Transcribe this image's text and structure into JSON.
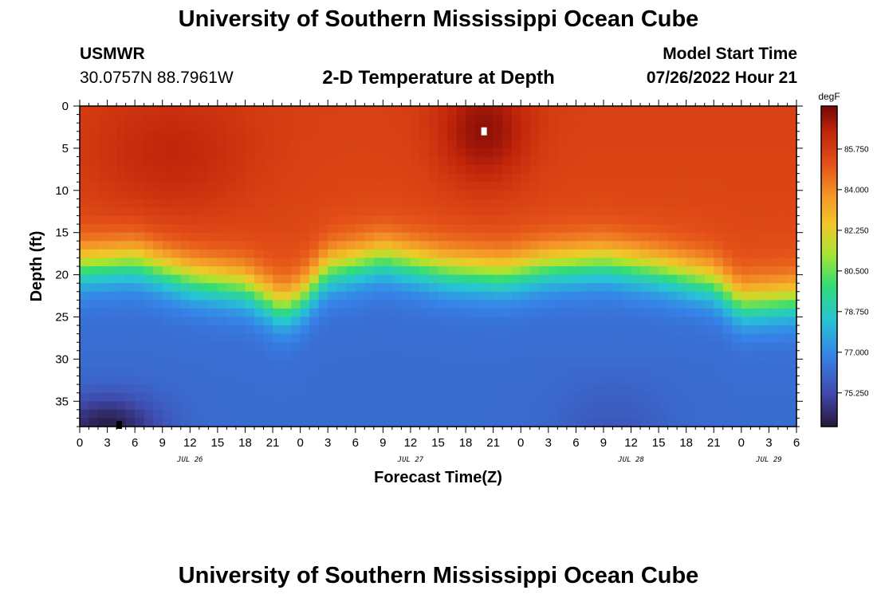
{
  "header": {
    "title": "University of Southern Mississippi Ocean Cube",
    "station": "USMWR",
    "coords": "30.0757N  88.7961W",
    "subtitle": "2-D Temperature at Depth",
    "model_start_label": "Model Start Time",
    "model_start_value": "07/26/2022 Hour 21"
  },
  "footer": {
    "title": "University of Southern Mississippi Ocean Cube"
  },
  "chart_data": {
    "type": "heatmap",
    "title": "2-D Temperature at Depth",
    "xlabel": "Forecast Time(Z)",
    "ylabel": "Depth (ft)",
    "x_range_hours": [
      0,
      78
    ],
    "ylim": [
      38,
      0
    ],
    "x_tick_labels": [
      "0",
      "3",
      "6",
      "9",
      "12",
      "15",
      "18",
      "21",
      "0",
      "3",
      "6",
      "9",
      "12",
      "15",
      "18",
      "21",
      "0",
      "3",
      "6",
      "9",
      "12",
      "15",
      "18",
      "21",
      "0",
      "3",
      "6"
    ],
    "x_tick_hours": [
      0,
      3,
      6,
      9,
      12,
      15,
      18,
      21,
      24,
      27,
      30,
      33,
      36,
      39,
      42,
      45,
      48,
      51,
      54,
      57,
      60,
      63,
      66,
      69,
      72,
      75,
      78
    ],
    "date_labels": [
      {
        "label": "JUL 26",
        "hour": 12
      },
      {
        "label": "JUL 27",
        "hour": 36
      },
      {
        "label": "JUL 28",
        "hour": 60
      },
      {
        "label": "JUL 29",
        "hour": 75
      }
    ],
    "y_ticks": [
      0,
      5,
      10,
      15,
      20,
      25,
      30,
      35
    ],
    "colorbar": {
      "unit": "degF",
      "range": [
        73.8,
        87.6
      ],
      "tick_values": [
        85.75,
        84.0,
        82.25,
        80.5,
        78.75,
        77.0,
        75.25
      ],
      "tick_labels": [
        "85.750",
        "84.000",
        "82.250",
        "80.500",
        "78.750",
        "77.000",
        "75.250"
      ]
    },
    "field_model": {
      "description": "approximate temperature (degF) vs depth (ft) and forecast hour",
      "surface_temp": 85.6,
      "bottom_temp": 76.2,
      "thermocline_depth_by_hour": [
        [
          0,
          19
        ],
        [
          6,
          18.5
        ],
        [
          12,
          20.5
        ],
        [
          18,
          21.5
        ],
        [
          22,
          24
        ],
        [
          24,
          23
        ],
        [
          27,
          19.5
        ],
        [
          33,
          18
        ],
        [
          40,
          19.5
        ],
        [
          46,
          20
        ],
        [
          51,
          19
        ],
        [
          57,
          18.5
        ],
        [
          63,
          19.5
        ],
        [
          69,
          21
        ],
        [
          72,
          23.5
        ],
        [
          78,
          23
        ]
      ],
      "warm_core": {
        "hour": 44,
        "depth": 3,
        "temp": 87.3
      },
      "warm_band_early": {
        "hour": 10,
        "depth": 6,
        "temp": 86.5
      },
      "cold_pool": {
        "hour": 3,
        "depth": 38,
        "temp": 74.0
      }
    },
    "markers": [
      {
        "name": "warm-marker",
        "hour": 44,
        "depth": 3.0,
        "color": "#ffffff"
      },
      {
        "name": "cold-marker",
        "hour": 4.3,
        "depth": 37.8,
        "color": "#000000"
      }
    ]
  }
}
